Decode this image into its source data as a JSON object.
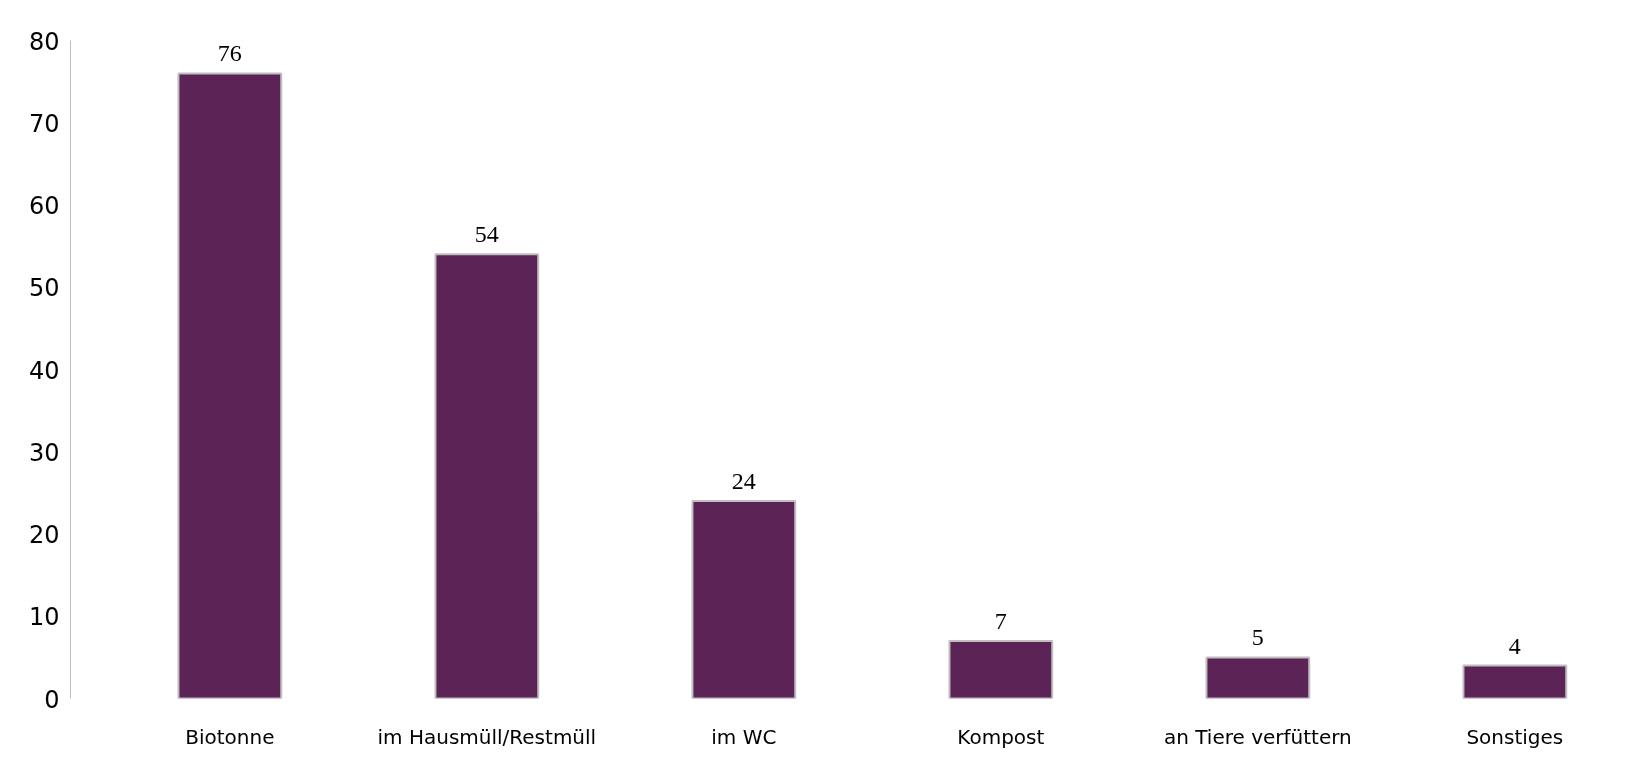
{
  "chart_data": {
    "type": "bar",
    "categories": [
      "Biotonne",
      "im Hausmüll/Restmüll",
      "im WC",
      "Kompost",
      "an Tiere verfüttern",
      "Sonstiges"
    ],
    "values": [
      76,
      54,
      24,
      7,
      5,
      4
    ],
    "color": "#5c2456",
    "ylim": [
      0,
      80
    ],
    "yticks": [
      0,
      10,
      20,
      30,
      40,
      50,
      60,
      70,
      80
    ],
    "grid": false,
    "data_labels": true
  }
}
